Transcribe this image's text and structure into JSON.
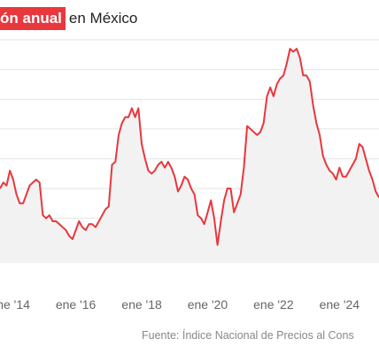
{
  "header": {
    "title_highlight": "ón anual",
    "title_rest": "en México"
  },
  "colors": {
    "accent": "#e8373d",
    "line": "#e8373d",
    "area": "#f2f2f2",
    "grid": "#e3e3e3",
    "text": "#666666"
  },
  "chart_data": {
    "type": "line",
    "title": "ón anual en México",
    "xlabel": "",
    "ylabel": "",
    "grid": true,
    "x_tick_labels": [
      "ene '14",
      "ene '16",
      "ene '18",
      "ene '20",
      "ene '22",
      "ene '24"
    ],
    "xlim": [
      2013.7,
      2025.2
    ],
    "ylim": [
      1.5,
      9.0
    ],
    "y_gridlines": [
      2,
      3,
      4,
      5,
      6,
      7,
      8,
      9
    ],
    "series": [
      {
        "x": [
          2013.7,
          2013.8,
          2013.9,
          2014.0,
          2014.1,
          2014.2,
          2014.3,
          2014.4,
          2014.5,
          2014.6,
          2014.7,
          2014.8,
          2014.9,
          2015.0,
          2015.1,
          2015.2,
          2015.3,
          2015.4,
          2015.5,
          2015.6,
          2015.7,
          2015.8,
          2015.9,
          2016.0,
          2016.1,
          2016.2,
          2016.3,
          2016.4,
          2016.5,
          2016.6,
          2016.7,
          2016.8,
          2016.9,
          2017.0,
          2017.1,
          2017.2,
          2017.3,
          2017.4,
          2017.5,
          2017.6,
          2017.7,
          2017.8,
          2017.9,
          2018.0,
          2018.1,
          2018.2,
          2018.3,
          2018.4,
          2018.5,
          2018.6,
          2018.7,
          2018.8,
          2018.9,
          2019.0,
          2019.1,
          2019.2,
          2019.3,
          2019.4,
          2019.5,
          2019.6,
          2019.7,
          2019.8,
          2019.9,
          2020.0,
          2020.1,
          2020.2,
          2020.3,
          2020.4,
          2020.5,
          2020.6,
          2020.7,
          2020.8,
          2020.9,
          2021.0,
          2021.1,
          2021.2,
          2021.3,
          2021.4,
          2021.5,
          2021.6,
          2021.7,
          2021.8,
          2021.9,
          2022.0,
          2022.1,
          2022.2,
          2022.3,
          2022.4,
          2022.5,
          2022.6,
          2022.7,
          2022.8,
          2022.9,
          2023.0,
          2023.1,
          2023.2,
          2023.3,
          2023.4,
          2023.5,
          2023.6,
          2023.7,
          2023.8,
          2023.9,
          2024.0,
          2024.1,
          2024.2,
          2024.3,
          2024.4,
          2024.5,
          2024.6,
          2024.7,
          2024.8,
          2024.9,
          2025.0,
          2025.1,
          2025.2
        ],
        "y": [
          4.0,
          4.2,
          4.1,
          4.6,
          4.3,
          3.8,
          3.5,
          3.5,
          3.8,
          4.1,
          4.2,
          4.3,
          4.2,
          3.1,
          3.0,
          3.1,
          2.9,
          2.9,
          2.8,
          2.7,
          2.6,
          2.4,
          2.3,
          2.6,
          2.9,
          2.7,
          2.6,
          2.8,
          2.8,
          2.7,
          2.9,
          3.1,
          3.3,
          3.4,
          4.8,
          4.9,
          5.8,
          6.2,
          6.4,
          6.4,
          6.7,
          6.4,
          6.7,
          5.5,
          5.0,
          4.6,
          4.5,
          4.6,
          4.8,
          4.9,
          4.7,
          4.9,
          4.7,
          4.4,
          3.9,
          4.1,
          4.4,
          4.3,
          4.0,
          3.8,
          3.1,
          3.0,
          2.8,
          3.2,
          3.6,
          3.0,
          2.1,
          2.9,
          3.6,
          4.0,
          4.0,
          3.2,
          3.5,
          3.8,
          4.7,
          6.1,
          6.0,
          5.9,
          5.8,
          5.9,
          6.2,
          7.1,
          7.4,
          7.1,
          7.5,
          7.7,
          7.8,
          8.2,
          8.7,
          8.6,
          8.7,
          8.4,
          7.8,
          7.8,
          7.6,
          6.8,
          6.2,
          5.8,
          5.1,
          4.8,
          4.6,
          4.5,
          4.3,
          4.7,
          4.4,
          4.4,
          4.6,
          4.8,
          5.0,
          5.5,
          5.4,
          5.0,
          4.6,
          4.3,
          3.9,
          3.7
        ]
      }
    ]
  },
  "footer": {
    "source": "Fuente: Índice Nacional de Precios al Cons"
  }
}
